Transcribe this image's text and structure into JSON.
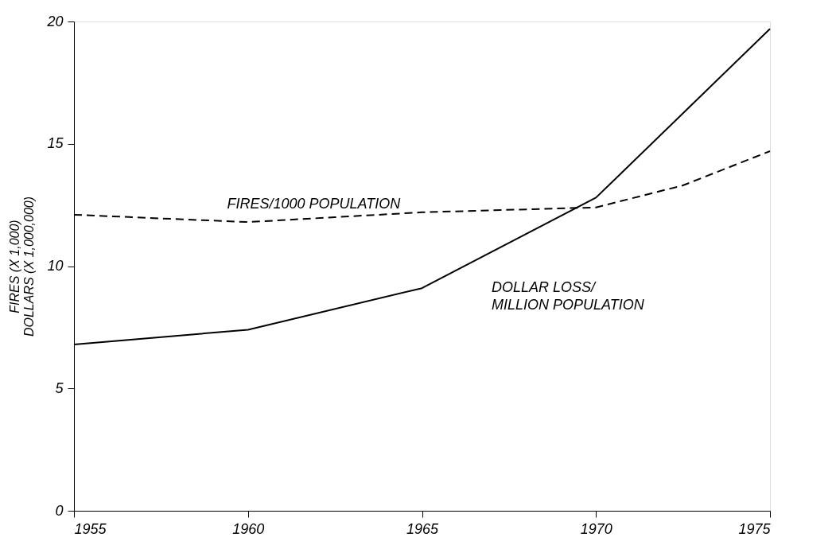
{
  "chart_data": {
    "type": "line",
    "ylabel": "FIRES (X 1,000)\nDOLLARS (X 1,000,000)",
    "xlim": [
      1955,
      1975
    ],
    "xticks": [
      1955,
      1960,
      1965,
      1970,
      1975
    ],
    "ylim": [
      0,
      20
    ],
    "yticks": [
      0,
      5,
      10,
      15,
      20
    ],
    "grid": false,
    "marker": "none",
    "series": [
      {
        "name": "FIRES/1000 POPULATION",
        "color": "#000000",
        "line_style": "dashed",
        "x": [
          1955,
          1960,
          1962.5,
          1965,
          1970,
          1972.5,
          1975
        ],
        "values": [
          12.1,
          11.8,
          12.0,
          12.2,
          12.4,
          13.3,
          14.7
        ]
      },
      {
        "name": "DOLLAR LOSS/\nMILLION POPULATION",
        "color": "#000000",
        "line_style": "solid",
        "x": [
          1955,
          1960,
          1965,
          1970,
          1975
        ],
        "values": [
          6.8,
          7.4,
          9.1,
          12.8,
          19.7
        ]
      }
    ]
  }
}
